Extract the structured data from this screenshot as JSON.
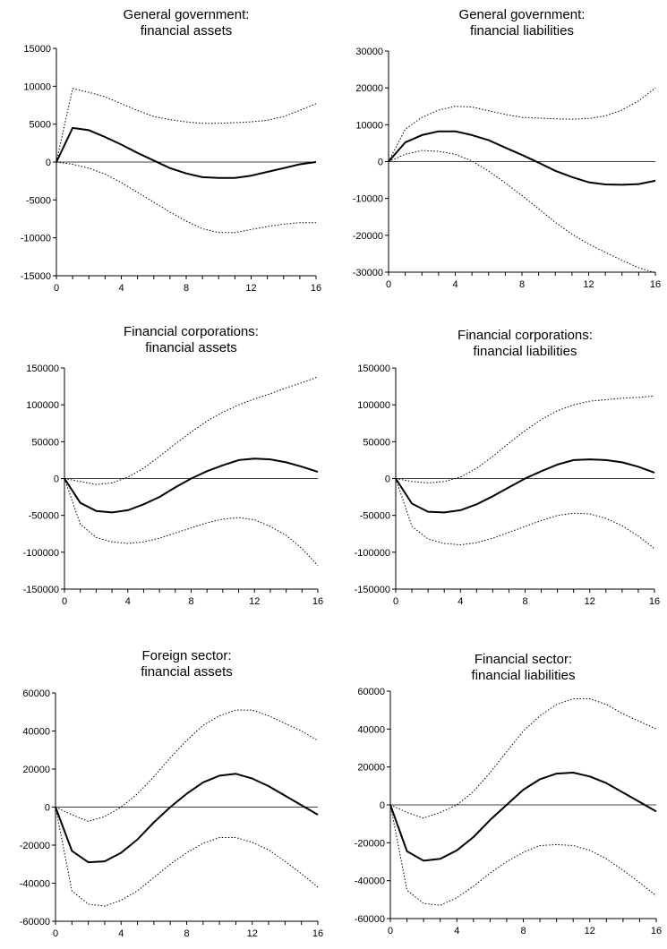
{
  "chart_data": [
    {
      "type": "line",
      "title": [
        "General government:",
        "financial assets"
      ],
      "x": [
        0,
        1,
        2,
        3,
        4,
        5,
        6,
        7,
        8,
        9,
        10,
        11,
        12,
        13,
        14,
        15,
        16
      ],
      "xticks": [
        0,
        4,
        8,
        12,
        16
      ],
      "ylim": [
        -15000,
        15000
      ],
      "yticks": [
        -15000,
        -10000,
        -5000,
        0,
        5000,
        10000,
        15000
      ],
      "yticklabels": [
        "-15000",
        "-10000",
        "-5000",
        "0",
        "5000",
        "10000",
        "15000"
      ],
      "series": [
        {
          "style": "solid",
          "values": [
            0,
            4500,
            4200,
            3300,
            2300,
            1200,
            200,
            -800,
            -1500,
            -2000,
            -2100,
            -2100,
            -1800,
            -1300,
            -800,
            -300,
            0
          ]
        },
        {
          "style": "dotted",
          "values": [
            0,
            9700,
            9200,
            8600,
            7700,
            6800,
            6000,
            5600,
            5300,
            5100,
            5100,
            5200,
            5300,
            5500,
            6000,
            6800,
            7700
          ]
        },
        {
          "style": "dotted",
          "values": [
            0,
            -300,
            -800,
            -1600,
            -2700,
            -4000,
            -5300,
            -6600,
            -7800,
            -8800,
            -9300,
            -9300,
            -8900,
            -8500,
            -8200,
            -8000,
            -8000
          ]
        }
      ]
    },
    {
      "type": "line",
      "title": [
        "General government:",
        "financial liabilities"
      ],
      "x": [
        0,
        1,
        2,
        3,
        4,
        5,
        6,
        7,
        8,
        9,
        10,
        11,
        12,
        13,
        14,
        15,
        16
      ],
      "xticks": [
        0,
        4,
        8,
        12,
        16
      ],
      "ylim": [
        -30000,
        30000
      ],
      "yticks": [
        -30000,
        -20000,
        -10000,
        0,
        10000,
        20000,
        30000
      ],
      "yticklabels": [
        "-30000",
        "-20000",
        "-10000",
        "0",
        "10000",
        "20000",
        "30000"
      ],
      "series": [
        {
          "style": "solid",
          "values": [
            0,
            5200,
            7200,
            8200,
            8200,
            7200,
            5800,
            3800,
            1800,
            -300,
            -2500,
            -4200,
            -5600,
            -6200,
            -6300,
            -6100,
            -5200
          ]
        },
        {
          "style": "dotted",
          "values": [
            0,
            8800,
            12000,
            14000,
            15000,
            14800,
            13800,
            12800,
            12000,
            11800,
            11600,
            11500,
            11700,
            12400,
            14000,
            16500,
            20000
          ]
        },
        {
          "style": "dotted",
          "values": [
            0,
            2000,
            3000,
            2800,
            2000,
            200,
            -2600,
            -5800,
            -9200,
            -12800,
            -16500,
            -19700,
            -22400,
            -24600,
            -26800,
            -28800,
            -30200
          ]
        }
      ]
    },
    {
      "type": "line",
      "title": [
        "Financial corporations:",
        "financial assets"
      ],
      "x": [
        0,
        1,
        2,
        3,
        4,
        5,
        6,
        7,
        8,
        9,
        10,
        11,
        12,
        13,
        14,
        15,
        16
      ],
      "xticks": [
        0,
        4,
        8,
        12,
        16
      ],
      "ylim": [
        -150000,
        150000
      ],
      "yticks": [
        -150000,
        -100000,
        -50000,
        0,
        50000,
        100000,
        150000
      ],
      "yticklabels": [
        "-150000",
        "-100000",
        "-50000",
        "0",
        "50000",
        "100000",
        "150000"
      ],
      "series": [
        {
          "style": "solid",
          "values": [
            0,
            -33000,
            -44000,
            -46000,
            -43000,
            -35000,
            -25000,
            -12000,
            0,
            10000,
            18000,
            25000,
            27000,
            26000,
            22000,
            16000,
            9000
          ]
        },
        {
          "style": "dotted",
          "values": [
            0,
            -4000,
            -8000,
            -6000,
            2000,
            14000,
            30000,
            47000,
            63000,
            78000,
            90000,
            100000,
            108000,
            115000,
            123000,
            130000,
            138000
          ]
        },
        {
          "style": "dotted",
          "values": [
            0,
            -62000,
            -80000,
            -86000,
            -88000,
            -86000,
            -81000,
            -74000,
            -67000,
            -60000,
            -55000,
            -53000,
            -56000,
            -65000,
            -77000,
            -95000,
            -118000
          ]
        }
      ]
    },
    {
      "type": "line",
      "title": [
        "Financial corporations:",
        "financial liabilities"
      ],
      "x": [
        0,
        1,
        2,
        3,
        4,
        5,
        6,
        7,
        8,
        9,
        10,
        11,
        12,
        13,
        14,
        15,
        16
      ],
      "xticks": [
        0,
        4,
        8,
        12,
        16
      ],
      "ylim": [
        -150000,
        150000
      ],
      "yticks": [
        -150000,
        -100000,
        -50000,
        0,
        50000,
        100000,
        150000
      ],
      "yticklabels": [
        "-150000",
        "-100000",
        "-50000",
        "0",
        "50000",
        "100000",
        "150000"
      ],
      "series": [
        {
          "style": "solid",
          "values": [
            0,
            -34000,
            -45000,
            -46000,
            -43000,
            -35000,
            -24000,
            -12000,
            0,
            10000,
            19000,
            25000,
            26000,
            25000,
            22000,
            16000,
            8000
          ]
        },
        {
          "style": "dotted",
          "values": [
            0,
            -4000,
            -6000,
            -4000,
            2000,
            14000,
            30000,
            48000,
            65000,
            80000,
            92000,
            100000,
            105000,
            107000,
            109000,
            110000,
            112000
          ]
        },
        {
          "style": "dotted",
          "values": [
            0,
            -65000,
            -82000,
            -88000,
            -90000,
            -87000,
            -81000,
            -73000,
            -65000,
            -57000,
            -50000,
            -47000,
            -48000,
            -54000,
            -64000,
            -78000,
            -95000
          ]
        }
      ]
    },
    {
      "type": "line",
      "title": [
        "Foreign sector:",
        "financial assets"
      ],
      "x": [
        0,
        1,
        2,
        3,
        4,
        5,
        6,
        7,
        8,
        9,
        10,
        11,
        12,
        13,
        14,
        15,
        16
      ],
      "xticks": [
        0,
        4,
        8,
        12,
        16
      ],
      "ylim": [
        -60000,
        60000
      ],
      "yticks": [
        -60000,
        -40000,
        -20000,
        0,
        20000,
        40000,
        60000
      ],
      "yticklabels": [
        "-60000",
        "-40000",
        "-20000",
        "0",
        "20000",
        "40000",
        "60000"
      ],
      "series": [
        {
          "style": "solid",
          "values": [
            0,
            -23000,
            -29000,
            -28500,
            -24000,
            -17000,
            -8000,
            0,
            7000,
            13000,
            16500,
            17500,
            15000,
            11000,
            6000,
            1000,
            -4000
          ]
        },
        {
          "style": "dotted",
          "values": [
            0,
            -4000,
            -7500,
            -5000,
            0,
            7000,
            16000,
            26000,
            35000,
            43000,
            48000,
            51000,
            51000,
            48000,
            44000,
            40000,
            35000
          ]
        },
        {
          "style": "dotted",
          "values": [
            0,
            -44000,
            -51000,
            -52000,
            -49000,
            -44000,
            -37000,
            -30000,
            -24000,
            -19000,
            -16000,
            -16000,
            -18500,
            -22500,
            -28500,
            -35000,
            -42000
          ]
        }
      ]
    },
    {
      "type": "line",
      "title": [
        "Financial sector:",
        "financial liabilities"
      ],
      "x": [
        0,
        1,
        2,
        3,
        4,
        5,
        6,
        7,
        8,
        9,
        10,
        11,
        12,
        13,
        14,
        15,
        16
      ],
      "xticks": [
        0,
        4,
        8,
        12,
        16
      ],
      "ylim": [
        -60000,
        60000
      ],
      "yticks": [
        -60000,
        -40000,
        -20000,
        0,
        20000,
        40000,
        60000
      ],
      "yticklabels": [
        "-60000",
        "-40000",
        "-20000",
        "0",
        "20000",
        "40000",
        "60000"
      ],
      "series": [
        {
          "style": "solid",
          "values": [
            0,
            -24500,
            -29500,
            -28500,
            -24000,
            -17000,
            -8000,
            0,
            8000,
            13500,
            16500,
            17000,
            15000,
            11500,
            6500,
            1500,
            -3500
          ]
        },
        {
          "style": "dotted",
          "values": [
            0,
            -4000,
            -7000,
            -4000,
            0,
            7000,
            17000,
            28000,
            39000,
            47000,
            53000,
            56000,
            56000,
            53000,
            48000,
            44000,
            40000
          ]
        },
        {
          "style": "dotted",
          "values": [
            0,
            -45000,
            -52000,
            -53000,
            -49000,
            -43000,
            -36000,
            -30000,
            -25000,
            -21500,
            -21000,
            -21500,
            -24000,
            -28500,
            -34500,
            -41000,
            -48000
          ]
        }
      ]
    }
  ]
}
